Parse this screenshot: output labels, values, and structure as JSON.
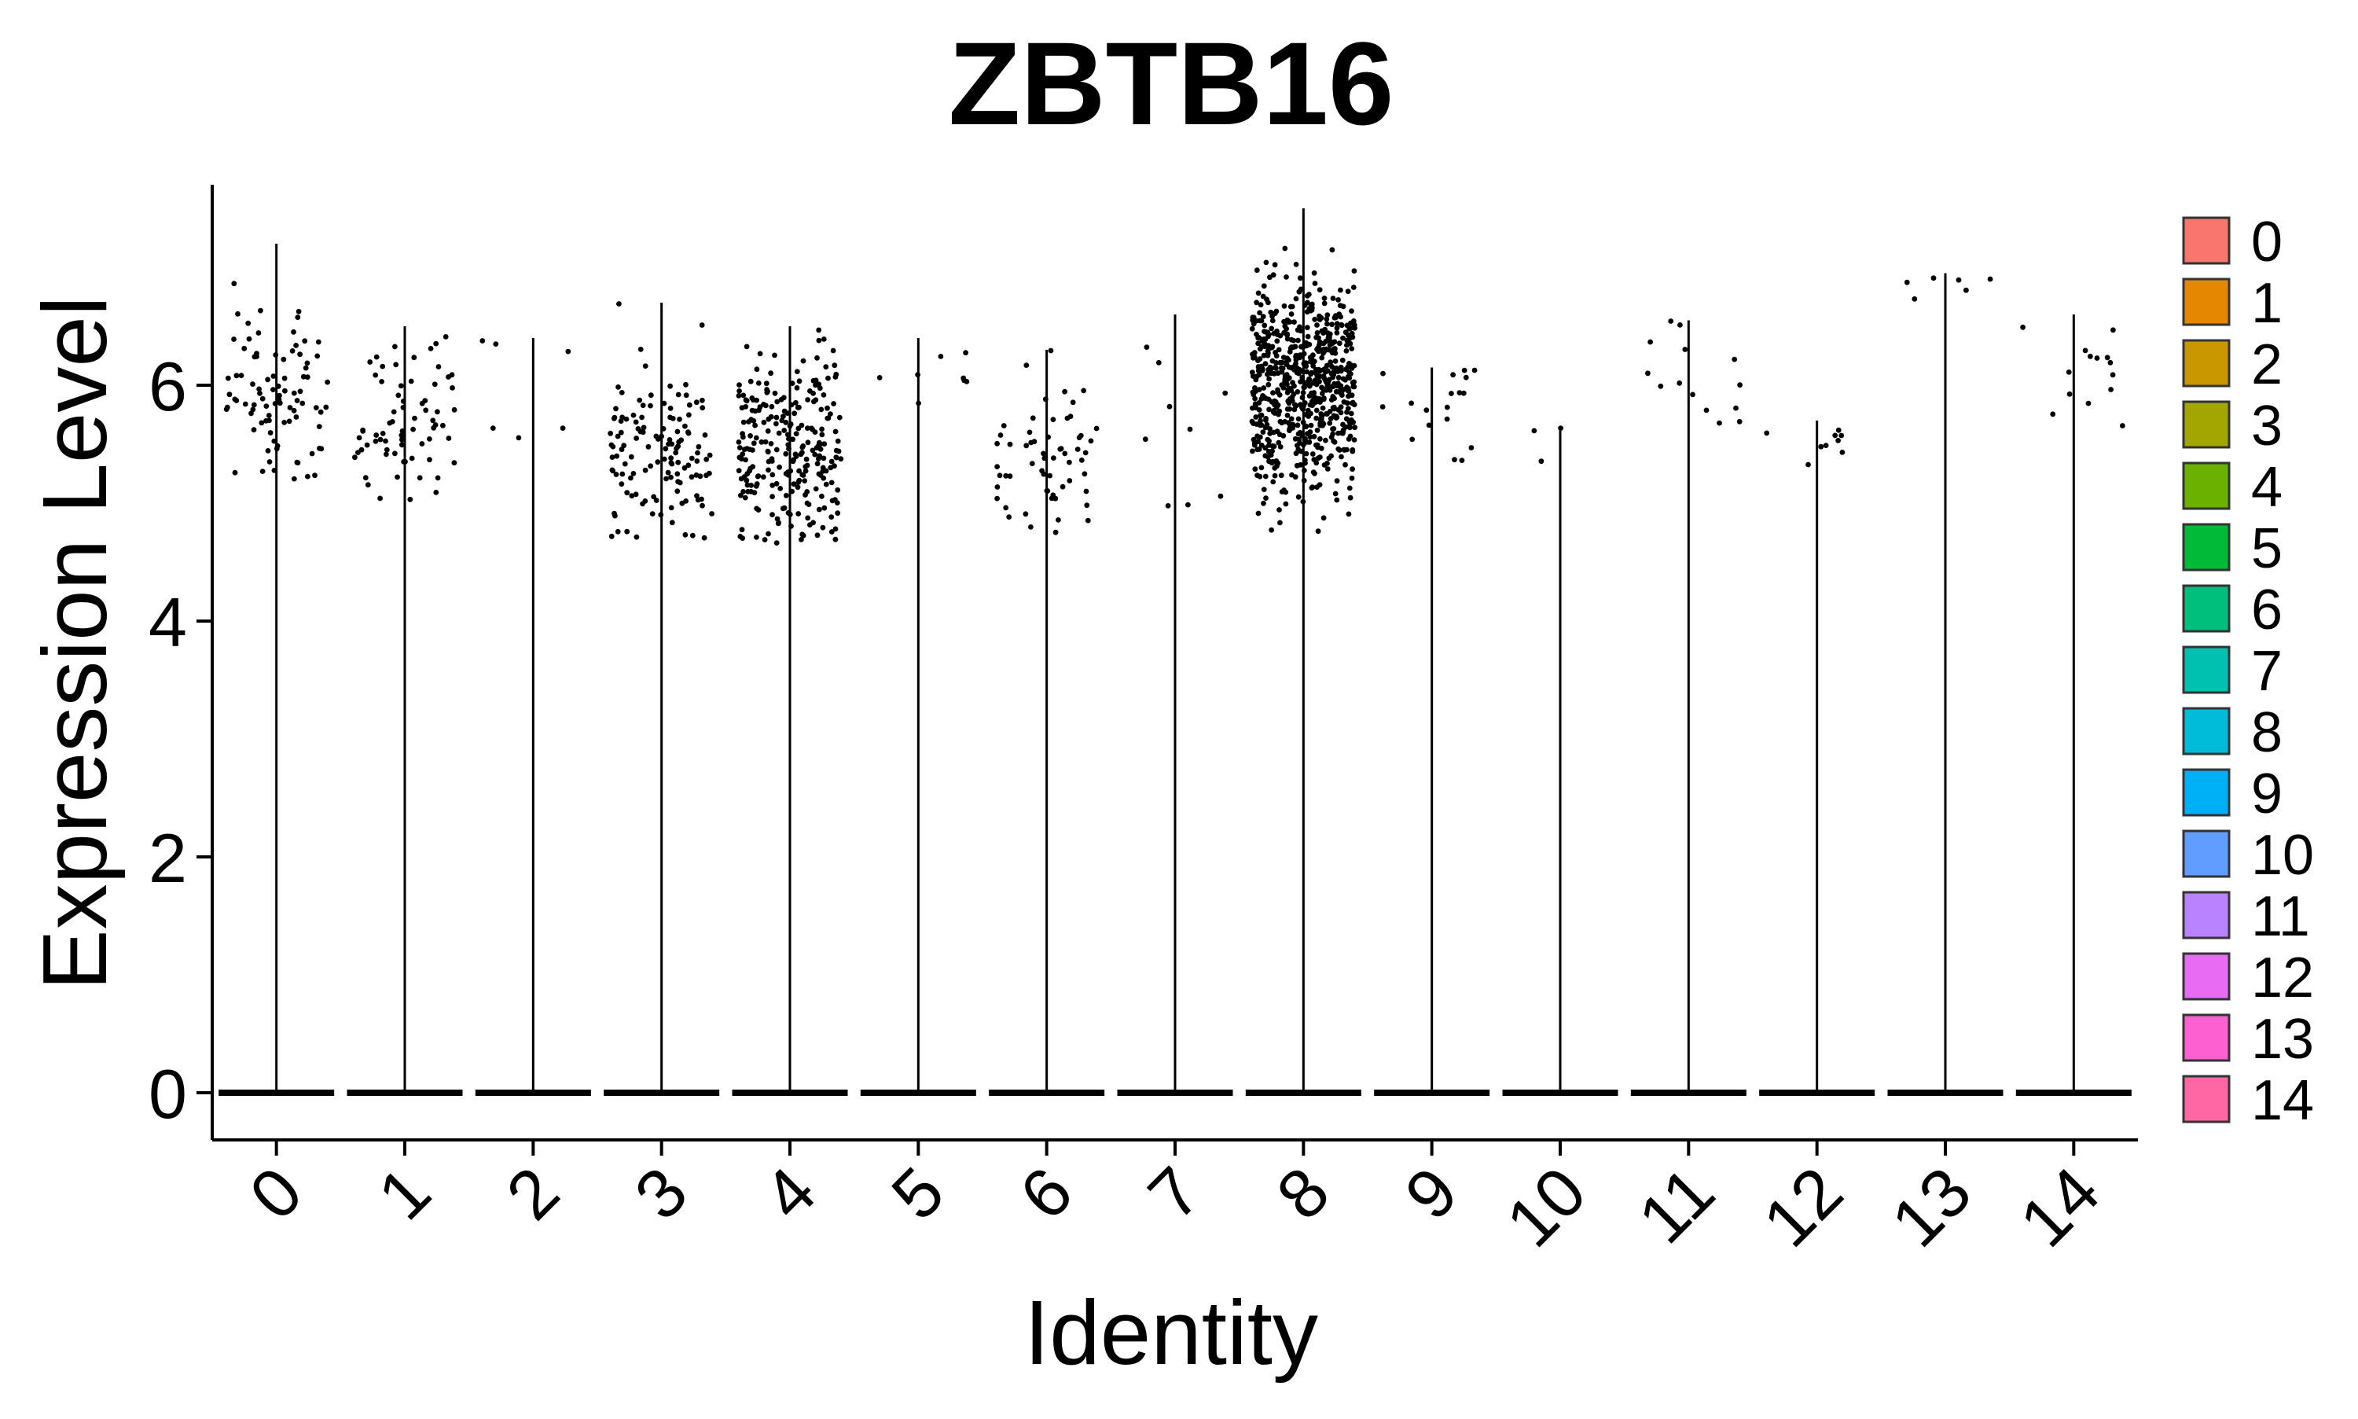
{
  "chart_data": {
    "type": "violin",
    "title": "ZBTB16",
    "xlabel": "Identity",
    "ylabel": "Expression Level",
    "categories": [
      "0",
      "1",
      "2",
      "3",
      "4",
      "5",
      "6",
      "7",
      "8",
      "9",
      "10",
      "11",
      "12",
      "13",
      "14"
    ],
    "ylim": [
      -0.4,
      7.7
    ],
    "yticks": [
      0,
      2,
      4,
      6
    ],
    "legend": {
      "position": "right",
      "entries": [
        "0",
        "1",
        "2",
        "3",
        "4",
        "5",
        "6",
        "7",
        "8",
        "9",
        "10",
        "11",
        "12",
        "13",
        "14"
      ],
      "colors": [
        "#F8766D",
        "#E58700",
        "#C99800",
        "#A3A500",
        "#6BB100",
        "#00BA38",
        "#00BF7D",
        "#00C0AF",
        "#00BCD8",
        "#00B0F6",
        "#619CFF",
        "#B983FF",
        "#E76BF3",
        "#FD61D1",
        "#FF67A4"
      ]
    },
    "series": [
      {
        "category": "0",
        "max": 7.2,
        "expr_min": 5.2,
        "expr_max": 7.2,
        "center": 5.95,
        "spread": 0.45,
        "n_expressing": 90
      },
      {
        "category": "1",
        "max": 6.5,
        "expr_min": 4.95,
        "expr_max": 6.5,
        "center": 5.65,
        "spread": 0.35,
        "n_expressing": 70
      },
      {
        "category": "2",
        "max": 6.4,
        "expr_min": 5.55,
        "expr_max": 6.4,
        "center": 5.95,
        "spread": 0.3,
        "n_expressing": 6
      },
      {
        "category": "3",
        "max": 6.7,
        "expr_min": 4.7,
        "expr_max": 6.7,
        "center": 5.4,
        "spread": 0.4,
        "n_expressing": 130
      },
      {
        "category": "4",
        "max": 6.5,
        "expr_min": 4.65,
        "expr_max": 6.5,
        "center": 5.45,
        "spread": 0.4,
        "n_expressing": 260
      },
      {
        "category": "5",
        "max": 6.4,
        "expr_min": 5.5,
        "expr_max": 6.4,
        "center": 6.1,
        "spread": 0.25,
        "n_expressing": 8
      },
      {
        "category": "6",
        "max": 6.3,
        "expr_min": 4.75,
        "expr_max": 6.3,
        "center": 5.45,
        "spread": 0.35,
        "n_expressing": 60
      },
      {
        "category": "7",
        "max": 6.6,
        "expr_min": 4.85,
        "expr_max": 6.6,
        "center": 5.6,
        "spread": 0.45,
        "n_expressing": 9
      },
      {
        "category": "8",
        "max": 7.5,
        "expr_min": 4.7,
        "expr_max": 7.5,
        "center": 5.95,
        "spread": 0.45,
        "n_expressing": 700
      },
      {
        "category": "9",
        "max": 6.15,
        "expr_min": 5.3,
        "expr_max": 6.15,
        "center": 5.7,
        "spread": 0.25,
        "n_expressing": 18
      },
      {
        "category": "10",
        "max": 5.65,
        "expr_min": 4.95,
        "expr_max": 5.65,
        "center": 5.2,
        "spread": 0.25,
        "n_expressing": 3
      },
      {
        "category": "11",
        "max": 6.55,
        "expr_min": 5.65,
        "expr_max": 6.55,
        "center": 6.05,
        "spread": 0.3,
        "n_expressing": 14
      },
      {
        "category": "12",
        "max": 5.7,
        "expr_min": 5.2,
        "expr_max": 5.7,
        "center": 5.5,
        "spread": 0.2,
        "n_expressing": 9
      },
      {
        "category": "13",
        "max": 6.95,
        "expr_min": 6.7,
        "expr_max": 6.95,
        "center": 6.85,
        "spread": 0.1,
        "n_expressing": 6
      },
      {
        "category": "14",
        "max": 6.6,
        "expr_min": 5.65,
        "expr_max": 6.6,
        "center": 6.1,
        "spread": 0.3,
        "n_expressing": 14
      }
    ],
    "grid": false,
    "points": "jittered expression values in black"
  }
}
